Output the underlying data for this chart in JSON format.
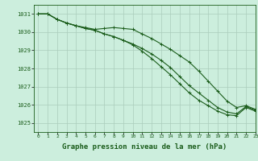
{
  "title": "Graphe pression niveau de la mer (hPa)",
  "title_fontsize": 6.5,
  "background_color": "#cceedd",
  "grid_color": "#aaccbb",
  "line_color": "#1a5c1a",
  "xlim": [
    -0.5,
    23
  ],
  "ylim": [
    1024.5,
    1031.5
  ],
  "yticks": [
    1025,
    1026,
    1027,
    1028,
    1029,
    1030,
    1031
  ],
  "xticks": [
    0,
    1,
    2,
    3,
    4,
    5,
    6,
    7,
    8,
    9,
    10,
    11,
    12,
    13,
    14,
    15,
    16,
    17,
    18,
    19,
    20,
    21,
    22,
    23
  ],
  "series": [
    [
      1031.0,
      1031.0,
      1030.7,
      1030.5,
      1030.35,
      1030.25,
      1030.15,
      1030.2,
      1030.25,
      1030.2,
      1030.15,
      1029.9,
      1029.65,
      1029.35,
      1029.05,
      1028.7,
      1028.35,
      1027.85,
      1027.3,
      1026.75,
      1026.2,
      1025.85,
      1025.95,
      1025.75
    ],
    [
      1031.0,
      1031.0,
      1030.7,
      1030.5,
      1030.35,
      1030.2,
      1030.1,
      1029.9,
      1029.75,
      1029.55,
      1029.3,
      1028.95,
      1028.55,
      1028.1,
      1027.65,
      1027.15,
      1026.65,
      1026.25,
      1025.95,
      1025.65,
      1025.45,
      1025.4,
      1025.85,
      1025.65
    ],
    [
      1031.0,
      1031.0,
      1030.7,
      1030.5,
      1030.35,
      1030.2,
      1030.1,
      1029.9,
      1029.75,
      1029.55,
      1029.35,
      1029.1,
      1028.8,
      1028.45,
      1028.05,
      1027.55,
      1027.05,
      1026.65,
      1026.25,
      1025.85,
      1025.6,
      1025.5,
      1025.9,
      1025.7
    ]
  ]
}
